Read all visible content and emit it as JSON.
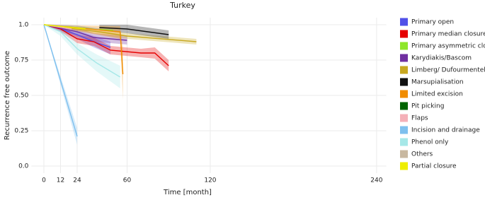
{
  "chart_data": {
    "type": "line",
    "title": "Turkey",
    "x_label": "Time [month]",
    "y_label": "Recurrence free outcome",
    "xlim": [
      -9,
      247
    ],
    "ylim": [
      -0.05,
      1.05
    ],
    "xticks": [
      0,
      12,
      24,
      60,
      120,
      240
    ],
    "yticks": [
      {
        "value": 0,
        "label": "0.0"
      },
      0.25,
      {
        "value": 0.5,
        "label": "0.50"
      },
      0.75,
      {
        "value": 1,
        "label": "1.0"
      }
    ],
    "grid": true,
    "series": [
      {
        "name": "Primary open",
        "color": "#5050e8",
        "x": [
          0,
          12,
          24,
          36,
          48
        ],
        "values": [
          1,
          0.97,
          0.93,
          0.88,
          0.84
        ],
        "lower": [
          1,
          0.95,
          0.9,
          0.84,
          0.79
        ],
        "upper": [
          1,
          0.99,
          0.96,
          0.92,
          0.88
        ]
      },
      {
        "name": "Primary median closure",
        "color": "#e60000",
        "x": [
          0,
          12,
          24,
          36,
          48,
          70,
          80,
          90
        ],
        "values": [
          1,
          0.97,
          0.9,
          0.88,
          0.82,
          0.8,
          0.8,
          0.71
        ],
        "lower": [
          1,
          0.95,
          0.87,
          0.85,
          0.79,
          0.77,
          0.76,
          0.67
        ],
        "upper": [
          1,
          0.99,
          0.93,
          0.91,
          0.85,
          0.83,
          0.84,
          0.75
        ]
      },
      {
        "name": "Primary asymmetric closure",
        "color": "#8ee62a",
        "x": [
          0,
          24,
          50
        ],
        "values": [
          1,
          0.98,
          0.96
        ]
      },
      {
        "name": "Karydiakis/Bascom",
        "color": "#7030a0",
        "x": [
          0,
          24,
          36,
          60
        ],
        "values": [
          1,
          0.95,
          0.91,
          0.89
        ],
        "lower": [
          1,
          0.92,
          0.88,
          0.86
        ],
        "upper": [
          1,
          0.98,
          0.94,
          0.92
        ]
      },
      {
        "name": "Limberg/ Dufourmentel",
        "color": "#c8a820",
        "x": [
          0,
          40,
          60,
          110
        ],
        "values": [
          1,
          0.95,
          0.92,
          0.88
        ],
        "lower": [
          1,
          0.93,
          0.9,
          0.86
        ],
        "upper": [
          1,
          0.97,
          0.94,
          0.9
        ]
      },
      {
        "name": "Marsupialisation",
        "color": "#111111",
        "x": [
          40,
          60,
          90
        ],
        "values": [
          0.98,
          0.97,
          0.93
        ],
        "lower": [
          0.96,
          0.94,
          0.9
        ],
        "upper": [
          1,
          1,
          0.96
        ]
      },
      {
        "name": "Limited excision",
        "color": "#f08c00",
        "x": [
          0,
          55,
          57
        ],
        "values": [
          1,
          0.95,
          0.65
        ],
        "lower": [
          1,
          0.9,
          0.47
        ],
        "upper": [
          1,
          0.99,
          0.83
        ]
      },
      {
        "name": "Pit picking",
        "color": "#006400",
        "x": [
          0,
          10
        ],
        "values": [
          1,
          0.99
        ]
      },
      {
        "name": "Flaps",
        "color": "#f4b0b8",
        "x": [
          0,
          20
        ],
        "values": [
          1,
          0.97
        ]
      },
      {
        "name": "Incision and drainage",
        "color": "#7ec0ee",
        "x": [
          0,
          24
        ],
        "values": [
          1,
          0.21
        ],
        "lower": [
          1,
          0.15
        ],
        "upper": [
          1,
          0.27
        ]
      },
      {
        "name": "Phenol only",
        "color": "#a6e8e8",
        "x": [
          0,
          12,
          24,
          38,
          55
        ],
        "values": [
          1,
          0.95,
          0.83,
          0.73,
          0.63
        ],
        "lower": [
          1,
          0.92,
          0.79,
          0.67,
          0.55
        ],
        "upper": [
          1,
          0.98,
          0.87,
          0.79,
          0.71
        ]
      },
      {
        "name": "Others",
        "color": "#c8b8a0",
        "x": [
          0,
          24,
          40
        ],
        "values": [
          1,
          0.99,
          0.97
        ]
      },
      {
        "name": "Partial closure",
        "color": "#eeee00",
        "x": [
          0,
          30
        ],
        "values": [
          1,
          0.97
        ]
      }
    ]
  }
}
